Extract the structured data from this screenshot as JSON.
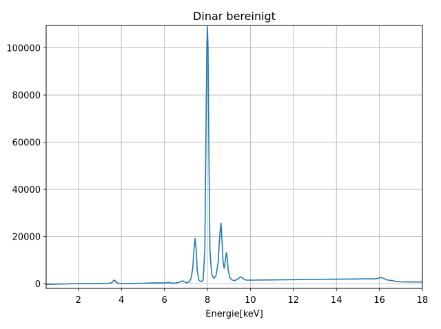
{
  "chart_data": {
    "type": "line",
    "title": "Dinar bereinigt",
    "xlabel": "Energie[keV]",
    "ylabel": "",
    "xlim": [
      0.5,
      18
    ],
    "ylim": [
      -2000,
      109500
    ],
    "xticks": [
      2,
      4,
      6,
      8,
      10,
      12,
      14,
      16,
      18
    ],
    "yticks": [
      0,
      20000,
      40000,
      60000,
      80000,
      100000
    ],
    "grid": true,
    "legend": "none",
    "series": [
      {
        "color": "#1f77b4",
        "x": [
          0.5,
          1.0,
          1.5,
          2.0,
          2.5,
          3.0,
          3.4,
          3.55,
          3.62,
          3.69,
          3.76,
          3.85,
          4.0,
          4.5,
          5.0,
          5.5,
          6.0,
          6.2,
          6.3,
          6.45,
          6.6,
          6.75,
          6.85,
          6.95,
          7.05,
          7.15,
          7.25,
          7.32,
          7.38,
          7.43,
          7.48,
          7.53,
          7.6,
          7.7,
          7.8,
          7.88,
          7.93,
          7.97,
          8.0,
          8.03,
          8.07,
          8.12,
          8.2,
          8.3,
          8.4,
          8.5,
          8.57,
          8.63,
          8.68,
          8.73,
          8.78,
          8.83,
          8.88,
          8.92,
          8.97,
          9.05,
          9.15,
          9.3,
          9.45,
          9.55,
          9.62,
          9.72,
          9.85,
          10.0,
          11.0,
          12.0,
          13.0,
          14.0,
          15.0,
          15.5,
          15.8,
          16.0,
          16.1,
          16.25,
          16.4,
          16.6,
          16.8,
          17.0,
          17.5,
          18.0
        ],
        "y": [
          -300,
          -200,
          -100,
          0,
          0,
          100,
          200,
          400,
          1200,
          1500,
          600,
          200,
          100,
          100,
          200,
          300,
          300,
          500,
          300,
          200,
          400,
          800,
          1200,
          700,
          400,
          800,
          2500,
          7000,
          15000,
          19200,
          14000,
          5500,
          1600,
          800,
          1500,
          15000,
          60000,
          100000,
          109000,
          100000,
          55000,
          14000,
          4000,
          2200,
          3500,
          9000,
          20000,
          25700,
          18000,
          9000,
          6500,
          9500,
          13200,
          11000,
          5500,
          2500,
          1500,
          1400,
          2200,
          2900,
          2600,
          1700,
          1500,
          1500,
          1600,
          1700,
          1800,
          1900,
          2000,
          2100,
          2000,
          2400,
          2600,
          2000,
          1500,
          1300,
          900,
          800,
          700,
          700
        ]
      }
    ]
  }
}
